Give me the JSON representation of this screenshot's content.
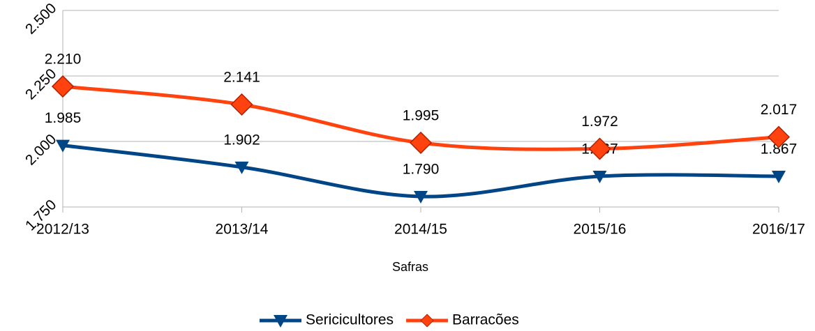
{
  "chart_data": {
    "type": "line",
    "x_label": "Safras",
    "categories": [
      "2012/13",
      "2013/14",
      "2014/15",
      "2015/16",
      "2016/17"
    ],
    "series": [
      {
        "name": "Sericicultores",
        "color": "#004586",
        "marker": "triangle-down",
        "values": [
          1985,
          1902,
          1790,
          1867,
          1867
        ],
        "value_labels": [
          "1.985",
          "1.902",
          "1.790",
          "1.867",
          "1.867"
        ]
      },
      {
        "name": "Barracões",
        "color": "#ff420e",
        "marker": "diamond",
        "values": [
          2210,
          2141,
          1995,
          1972,
          2017
        ],
        "value_labels": [
          "2.210",
          "2.141",
          "1.995",
          "1.972",
          "2.017"
        ]
      }
    ],
    "ylim": [
      1750,
      2500
    ],
    "yticks": [
      {
        "value": 1750,
        "label": "1.750"
      },
      {
        "value": 2000,
        "label": "2.000"
      },
      {
        "value": 2250,
        "label": "2.250"
      },
      {
        "value": 2500,
        "label": "2.500"
      }
    ],
    "grid": true,
    "smooth": true,
    "legend": "bottom"
  }
}
